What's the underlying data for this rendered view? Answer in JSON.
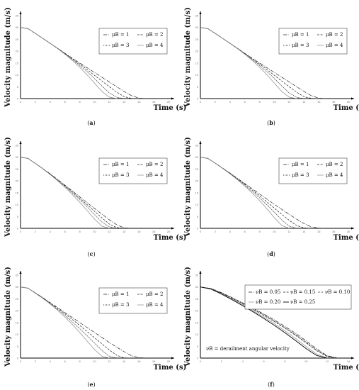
{
  "chart_data": [
    {
      "type": "line",
      "caption": "(a)",
      "ylabel": "Velocity magnitude (m/s)",
      "xlabel": "Time (s)",
      "xlim": [
        0,
        20
      ],
      "ylim": [
        0,
        35
      ],
      "xticks": [
        "0",
        "2",
        "4",
        "6",
        "8",
        "10",
        "12",
        "14",
        "16",
        "18",
        "20"
      ],
      "yticks": [
        "0",
        "5",
        "10",
        "15",
        "20",
        "25",
        "30",
        "35"
      ],
      "grid": false,
      "legend_position": "top-right",
      "legend_ncol": 2,
      "series": [
        {
          "name": "μB = 1",
          "style": "dash-dot",
          "x": [
            0,
            1,
            2,
            3,
            4,
            5,
            6,
            7,
            8,
            9,
            10,
            11,
            12,
            13,
            14,
            15,
            16,
            17
          ],
          "y": [
            30,
            29.5,
            27.5,
            25.4,
            23.3,
            21.2,
            19.1,
            17,
            15,
            13,
            11,
            9,
            7,
            5,
            3,
            1.2,
            0.2,
            0
          ]
        },
        {
          "name": "μB = 2",
          "style": "dashed",
          "x": [
            0,
            1,
            2,
            3,
            4,
            5,
            6,
            7,
            8,
            9,
            10,
            11,
            12,
            13,
            14,
            15,
            16
          ],
          "y": [
            30,
            29.5,
            27.5,
            25.4,
            23.3,
            21.2,
            19,
            16.8,
            14.6,
            12.2,
            9.8,
            7.4,
            5,
            2.7,
            0.8,
            0.1,
            0
          ]
        },
        {
          "name": "μB = 3",
          "style": "dotted",
          "x": [
            0,
            1,
            2,
            3,
            4,
            5,
            6,
            7,
            8,
            9,
            10,
            11,
            12,
            13,
            14
          ],
          "y": [
            30,
            29.5,
            27.5,
            25.4,
            23.3,
            21.2,
            18.9,
            16.5,
            14,
            11.3,
            8.4,
            5.3,
            2.4,
            0.5,
            0
          ]
        },
        {
          "name": "μB = 4",
          "style": "solid-gray",
          "x": [
            0,
            1,
            2,
            3,
            4,
            5,
            6,
            7,
            8,
            9,
            10,
            11,
            12,
            13
          ],
          "y": [
            30,
            29.5,
            27.5,
            25.4,
            23.3,
            21.1,
            18.7,
            16.1,
            13.2,
            10,
            6.5,
            3,
            0.6,
            0
          ]
        }
      ]
    },
    {
      "type": "line",
      "caption": "(b)",
      "ylabel": "Velocity magnitude (m/s)",
      "xlabel": "Time (s)",
      "xlim": [
        0,
        20
      ],
      "ylim": [
        0,
        35
      ],
      "xticks": [
        "0",
        "2",
        "4",
        "6",
        "8",
        "10",
        "12",
        "14",
        "16",
        "18",
        "20"
      ],
      "yticks": [
        "0",
        "5",
        "10",
        "15",
        "20",
        "25",
        "30",
        "35"
      ],
      "grid": false,
      "legend_position": "top-right",
      "legend_ncol": 2,
      "series": [
        {
          "name": "μB = 1",
          "style": "dash-dot",
          "x": [
            0,
            1,
            2,
            3,
            4,
            5,
            6,
            7,
            8,
            9,
            10,
            11,
            12,
            13,
            14,
            15,
            16,
            17
          ],
          "y": [
            30,
            29.5,
            27.5,
            25.4,
            23.3,
            21.2,
            19.1,
            17,
            15,
            13,
            11,
            9,
            7,
            5,
            3,
            1.2,
            0.2,
            0
          ]
        },
        {
          "name": "μB = 2",
          "style": "dashed",
          "x": [
            0,
            1,
            2,
            3,
            4,
            5,
            6,
            7,
            8,
            9,
            10,
            11,
            12,
            13,
            14,
            15,
            16
          ],
          "y": [
            30,
            29.5,
            27.5,
            25.4,
            23.3,
            21.2,
            19,
            16.8,
            14.6,
            12.2,
            9.8,
            7.4,
            5,
            2.7,
            0.8,
            0.1,
            0
          ]
        },
        {
          "name": "μB = 3",
          "style": "dotted",
          "x": [
            0,
            1,
            2,
            3,
            4,
            5,
            6,
            7,
            8,
            9,
            10,
            11,
            12,
            13,
            14
          ],
          "y": [
            30,
            29.5,
            27.5,
            25.4,
            23.3,
            21.2,
            18.9,
            16.5,
            14,
            11.3,
            8.4,
            5.3,
            2.4,
            0.5,
            0
          ]
        },
        {
          "name": "μB = 4",
          "style": "solid-gray",
          "x": [
            0,
            1,
            2,
            3,
            4,
            5,
            6,
            7,
            8,
            9,
            10,
            11,
            12,
            13
          ],
          "y": [
            30,
            29.5,
            27.5,
            25.4,
            23.3,
            21.1,
            18.7,
            16.1,
            13.2,
            10,
            6.5,
            3,
            0.6,
            0
          ]
        }
      ]
    },
    {
      "type": "line",
      "caption": "(c)",
      "ylabel": "Velocity magnitude (m/s)",
      "xlabel": "Time (s)",
      "xlim": [
        0,
        20
      ],
      "ylim": [
        0,
        35
      ],
      "xticks": [
        "0",
        "2",
        "4",
        "6",
        "8",
        "10",
        "12",
        "14",
        "16",
        "18",
        "20"
      ],
      "yticks": [
        "0",
        "5",
        "10",
        "15",
        "20",
        "25",
        "30",
        "35"
      ],
      "grid": false,
      "legend_position": "top-right",
      "legend_ncol": 2,
      "series": [
        {
          "name": "μB = 1",
          "style": "dash-dot",
          "x": [
            0,
            1,
            2,
            3,
            4,
            5,
            6,
            7,
            8,
            9,
            10,
            11,
            12,
            13,
            14,
            15
          ],
          "y": [
            30,
            29.5,
            27.4,
            25.2,
            23,
            20.6,
            18.2,
            15.8,
            13.3,
            10.8,
            8.4,
            6,
            3.6,
            1.5,
            0.2,
            0
          ]
        },
        {
          "name": "μB = 2",
          "style": "dashed",
          "x": [
            0,
            1,
            2,
            3,
            4,
            5,
            6,
            7,
            8,
            9,
            10,
            11,
            12,
            13,
            14
          ],
          "y": [
            30,
            29.5,
            27.4,
            25.2,
            22.9,
            20.5,
            18,
            15.4,
            12.7,
            10,
            7.2,
            4.4,
            1.8,
            0.3,
            0
          ]
        },
        {
          "name": "μB = 3",
          "style": "dotted",
          "x": [
            0,
            1,
            2,
            3,
            4,
            5,
            6,
            7,
            8,
            9,
            10,
            11,
            12,
            13
          ],
          "y": [
            30,
            29.5,
            27.4,
            25.2,
            22.8,
            20.3,
            17.7,
            15,
            12.1,
            9,
            5.8,
            2.7,
            0.6,
            0
          ]
        },
        {
          "name": "μB = 4",
          "style": "solid-gray",
          "x": [
            0,
            1,
            2,
            3,
            4,
            5,
            6,
            7,
            8,
            9,
            10,
            11,
            12
          ],
          "y": [
            30,
            29.5,
            27.4,
            25.1,
            22.7,
            20.1,
            17.3,
            14.3,
            11,
            7.5,
            3.9,
            0.9,
            0
          ]
        }
      ]
    },
    {
      "type": "line",
      "caption": "(d)",
      "ylabel": "Velocity magnitude (m/s)",
      "xlabel": "Time (s)",
      "xlim": [
        0,
        20
      ],
      "ylim": [
        0,
        35
      ],
      "xticks": [
        "0",
        "2",
        "4",
        "6",
        "8",
        "10",
        "12",
        "14",
        "16",
        "18",
        "20"
      ],
      "yticks": [
        "0",
        "5",
        "10",
        "15",
        "20",
        "25",
        "30",
        "35"
      ],
      "grid": false,
      "legend_position": "top-right",
      "legend_ncol": 2,
      "series": [
        {
          "name": "μB = 1",
          "style": "dash-dot",
          "x": [
            0,
            1,
            2,
            3,
            4,
            5,
            6,
            7,
            8,
            9,
            10,
            11,
            12,
            13,
            14,
            15,
            16,
            17
          ],
          "y": [
            30,
            29.5,
            27.5,
            25.4,
            23.3,
            21.1,
            18.9,
            16.7,
            14.5,
            12.3,
            10.1,
            8,
            5.9,
            3.9,
            2,
            0.6,
            0.1,
            0
          ]
        },
        {
          "name": "μB = 2",
          "style": "dashed",
          "x": [
            0,
            1,
            2,
            3,
            4,
            5,
            6,
            7,
            8,
            9,
            10,
            11,
            12,
            13,
            14,
            15
          ],
          "y": [
            30,
            29.5,
            27.5,
            25.4,
            23.2,
            21,
            18.6,
            16.2,
            13.7,
            11.1,
            8.5,
            5.9,
            3.4,
            1.2,
            0.2,
            0
          ]
        },
        {
          "name": "μB = 3",
          "style": "dotted",
          "x": [
            0,
            1,
            2,
            3,
            4,
            5,
            6,
            7,
            8,
            9,
            10,
            11,
            12,
            13
          ],
          "y": [
            30,
            29.5,
            27.5,
            25.3,
            23.1,
            20.7,
            18.2,
            15.6,
            12.8,
            9.9,
            6.8,
            3.6,
            0.9,
            0
          ]
        },
        {
          "name": "μB = 4",
          "style": "solid-gray",
          "x": [
            0,
            1,
            2,
            3,
            4,
            5,
            6,
            7,
            8,
            9,
            10,
            11,
            12
          ],
          "y": [
            30,
            29.5,
            27.5,
            25.3,
            23,
            20.5,
            17.8,
            14.9,
            11.7,
            8.2,
            4.5,
            1.2,
            0
          ]
        }
      ]
    },
    {
      "type": "line",
      "caption": "(e)",
      "ylabel": "Velocity magnitude (m/s)",
      "xlabel": "Time (s)",
      "xlim": [
        0,
        20
      ],
      "ylim": [
        0,
        35
      ],
      "xticks": [
        "0",
        "2",
        "4",
        "6",
        "8",
        "10",
        "12",
        "14",
        "16",
        "18",
        "20"
      ],
      "yticks": [
        "0",
        "5",
        "10",
        "15",
        "20",
        "25",
        "30",
        "35"
      ],
      "grid": false,
      "legend_position": "top-right",
      "legend_ncol": 2,
      "series": [
        {
          "name": "μB = 1",
          "style": "dash-dot",
          "x": [
            0,
            1,
            2,
            3,
            4,
            5,
            6,
            7,
            8,
            9,
            10,
            11,
            12,
            13,
            14,
            15,
            16,
            17
          ],
          "y": [
            30,
            29.5,
            27.5,
            25.5,
            23.4,
            21.3,
            19.2,
            17.1,
            15,
            12.9,
            10.8,
            8.7,
            6.6,
            4.6,
            2.7,
            1,
            0.2,
            0
          ]
        },
        {
          "name": "μB = 2",
          "style": "dashed",
          "x": [
            0,
            1,
            2,
            3,
            4,
            5,
            6,
            7,
            8,
            9,
            10,
            11,
            12,
            13,
            14,
            15
          ],
          "y": [
            30,
            29.5,
            27.5,
            25.4,
            23.2,
            21,
            18.7,
            16.3,
            13.8,
            11.2,
            8.6,
            6,
            3.4,
            1.2,
            0.1,
            0
          ]
        },
        {
          "name": "μB = 3",
          "style": "dotted",
          "x": [
            0,
            1,
            2,
            3,
            4,
            5,
            6,
            7,
            8,
            9,
            10,
            11,
            12,
            13
          ],
          "y": [
            30,
            29.5,
            27.4,
            25.3,
            23,
            20.6,
            18,
            15.3,
            12.4,
            9.4,
            6.3,
            3.2,
            0.8,
            0
          ]
        },
        {
          "name": "μB = 4",
          "style": "solid-gray",
          "x": [
            0,
            1,
            2,
            3,
            4,
            5,
            6,
            7,
            8,
            9,
            10,
            11,
            12
          ],
          "y": [
            30,
            29.5,
            27.4,
            25.2,
            22.8,
            20.2,
            17.3,
            14.2,
            10.8,
            7.2,
            3.6,
            0.8,
            0
          ]
        }
      ]
    },
    {
      "type": "line",
      "caption": "(f)",
      "ylabel": "Velocity magnitude (m/s)",
      "xlabel": "Time (s)",
      "xlim": [
        0,
        14
      ],
      "ylim": [
        0,
        35
      ],
      "xticks": [
        "0",
        "2",
        "4",
        "6",
        "8",
        "10",
        "12",
        "14"
      ],
      "yticks": [
        "0",
        "5",
        "10",
        "15",
        "20",
        "25",
        "30",
        "35"
      ],
      "grid": false,
      "legend_position": "top-right",
      "legend_ncol": 3,
      "annotation": "νB = derailment angular velocity",
      "series": [
        {
          "name": "νB = 0.05",
          "style": "dash-dot",
          "x": [
            0,
            1,
            2,
            3,
            4,
            5,
            6,
            7,
            8,
            9,
            10,
            11,
            12,
            13
          ],
          "y": [
            30,
            29.4,
            27.6,
            25.5,
            23.3,
            21,
            18.6,
            16.1,
            13.4,
            10.5,
            7.3,
            3.9,
            1,
            0
          ]
        },
        {
          "name": "νB = 0.15",
          "style": "dashed",
          "x": [
            0,
            1,
            2,
            3,
            4,
            5,
            6,
            7,
            8,
            9,
            10,
            11,
            12,
            13
          ],
          "y": [
            30,
            29.3,
            27.4,
            25.2,
            22.9,
            20.5,
            18,
            15.4,
            12.6,
            9.6,
            6.4,
            3.1,
            0.6,
            0
          ]
        },
        {
          "name": "νB = 0.10",
          "style": "dotted",
          "x": [
            0,
            1,
            2,
            3,
            4,
            5,
            6,
            7,
            8,
            9,
            10,
            11,
            12,
            13
          ],
          "y": [
            30,
            29.3,
            27.5,
            25.4,
            23.1,
            20.7,
            18.3,
            15.7,
            12.9,
            9.9,
            6.7,
            3.4,
            0.8,
            0
          ]
        },
        {
          "name": "νB = 0.20",
          "style": "solid-gray",
          "x": [
            0,
            1,
            2,
            3,
            4,
            5,
            6,
            7,
            8,
            9,
            10,
            11,
            12
          ],
          "y": [
            30,
            29.2,
            27.2,
            24.9,
            22.5,
            20,
            17.3,
            14.5,
            11.5,
            8.3,
            4.9,
            1.7,
            0
          ]
        },
        {
          "name": "νB = 0.25",
          "style": "solid-black",
          "x": [
            0,
            1,
            2,
            3,
            4,
            5,
            6,
            7,
            8,
            9,
            10,
            11,
            12
          ],
          "y": [
            30,
            29.1,
            27,
            24.6,
            22.1,
            19.5,
            16.7,
            13.8,
            10.7,
            7.4,
            4,
            1.1,
            0
          ]
        }
      ]
    }
  ],
  "captions": [
    "(a)",
    "(b)",
    "(c)",
    "(d)",
    "(e)",
    "(f)"
  ]
}
